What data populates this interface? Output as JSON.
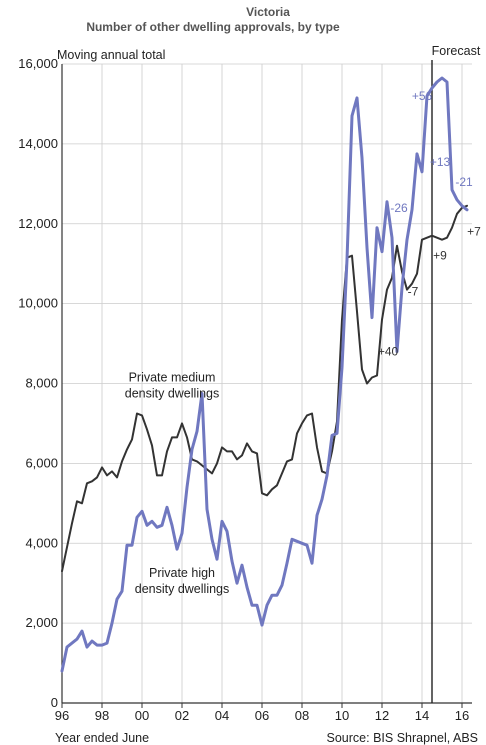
{
  "chart_data": {
    "type": "line",
    "title": "Victoria",
    "subtitle": "Number of other dwelling approvals, by type",
    "ylabel": "Moving annual total",
    "xlabel": "Year ended June",
    "source": "Source: BIS Shrapnel, ABS",
    "forecast_label": "Forecast",
    "forecast_start_year": 2014.5,
    "xlim": [
      1996,
      2016.5
    ],
    "ylim": [
      0,
      16000
    ],
    "x_ticks": [
      1996,
      1998,
      2000,
      2002,
      2004,
      2006,
      2008,
      2010,
      2012,
      2014,
      2016
    ],
    "x_tick_labels": [
      "96",
      "98",
      "00",
      "02",
      "04",
      "06",
      "08",
      "10",
      "12",
      "14",
      "16"
    ],
    "y_ticks": [
      0,
      2000,
      4000,
      6000,
      8000,
      10000,
      12000,
      14000,
      16000
    ],
    "y_tick_labels": [
      "0",
      "2,000",
      "4,000",
      "6,000",
      "8,000",
      "10,000",
      "12,000",
      "14,000",
      "16,000"
    ],
    "colors": {
      "medium": "#333333",
      "high": "#7078c0",
      "grid": "#cccccc",
      "forecast": "#222222"
    },
    "series": [
      {
        "key": "medium",
        "name": "Private medium density dwellings",
        "label_lines": [
          "Private medium",
          "density dwellings"
        ],
        "x": [
          1996.0,
          1996.25,
          1996.5,
          1996.75,
          1997.0,
          1997.25,
          1997.5,
          1997.75,
          1998.0,
          1998.25,
          1998.5,
          1998.75,
          1999.0,
          1999.25,
          1999.5,
          1999.75,
          2000.0,
          2000.25,
          2000.5,
          2000.75,
          2001.0,
          2001.25,
          2001.5,
          2001.75,
          2002.0,
          2002.25,
          2002.5,
          2002.75,
          2003.0,
          2003.25,
          2003.5,
          2003.75,
          2004.0,
          2004.25,
          2004.5,
          2004.75,
          2005.0,
          2005.25,
          2005.5,
          2005.75,
          2006.0,
          2006.25,
          2006.5,
          2006.75,
          2007.0,
          2007.25,
          2007.5,
          2007.75,
          2008.0,
          2008.25,
          2008.5,
          2008.75,
          2009.0,
          2009.25,
          2009.5,
          2009.75,
          2010.0,
          2010.25,
          2010.5,
          2010.75,
          2011.0,
          2011.25,
          2011.5,
          2011.75,
          2012.0,
          2012.25,
          2012.5,
          2012.75,
          2013.0,
          2013.25,
          2013.5,
          2013.75,
          2014.0,
          2014.25,
          2014.5,
          2014.75,
          2015.0,
          2015.25,
          2015.5,
          2015.75,
          2016.0,
          2016.25
        ],
        "values": [
          3300,
          3900,
          4500,
          5050,
          5000,
          5500,
          5550,
          5650,
          5900,
          5700,
          5800,
          5650,
          6050,
          6350,
          6600,
          7250,
          7200,
          6850,
          6450,
          5700,
          5700,
          6300,
          6650,
          6650,
          7000,
          6650,
          6100,
          6050,
          5950,
          5850,
          5750,
          6000,
          6400,
          6300,
          6300,
          6100,
          6200,
          6500,
          6300,
          6250,
          5250,
          5200,
          5350,
          5450,
          5750,
          6050,
          6100,
          6750,
          7000,
          7200,
          7250,
          6400,
          5800,
          5750,
          6300,
          7050,
          9600,
          11150,
          11200,
          9800,
          8350,
          8000,
          8150,
          8200,
          9600,
          10350,
          10650,
          11450,
          10800,
          10350,
          10500,
          10750,
          11600,
          11650,
          11700,
          11650,
          11600,
          11650,
          11900,
          12250,
          12400,
          12450
        ],
        "annotations": [
          {
            "text": "+40",
            "x": 2012.3,
            "y": 8700
          },
          {
            "text": "-7",
            "x": 2013.55,
            "y": 10200
          },
          {
            "text": "+9",
            "x": 2014.9,
            "y": 11100
          },
          {
            "text": "+7",
            "x": 2016.6,
            "y": 11700
          }
        ]
      },
      {
        "key": "high",
        "name": "Private high density dwellings",
        "label_lines": [
          "Private high",
          "density dwellings"
        ],
        "x": [
          1996.0,
          1996.25,
          1996.5,
          1996.75,
          1997.0,
          1997.25,
          1997.5,
          1997.75,
          1998.0,
          1998.25,
          1998.5,
          1998.75,
          1999.0,
          1999.25,
          1999.5,
          1999.75,
          2000.0,
          2000.25,
          2000.5,
          2000.75,
          2001.0,
          2001.25,
          2001.5,
          2001.75,
          2002.0,
          2002.25,
          2002.5,
          2002.75,
          2003.0,
          2003.25,
          2003.5,
          2003.75,
          2004.0,
          2004.25,
          2004.5,
          2004.75,
          2005.0,
          2005.25,
          2005.5,
          2005.75,
          2006.0,
          2006.25,
          2006.5,
          2006.75,
          2007.0,
          2007.25,
          2007.5,
          2007.75,
          2008.0,
          2008.25,
          2008.5,
          2008.75,
          2009.0,
          2009.25,
          2009.5,
          2009.75,
          2010.0,
          2010.25,
          2010.5,
          2010.75,
          2011.0,
          2011.25,
          2011.5,
          2011.75,
          2012.0,
          2012.25,
          2012.5,
          2012.75,
          2013.0,
          2013.25,
          2013.5,
          2013.75,
          2014.0,
          2014.25,
          2014.5,
          2014.75,
          2015.0,
          2015.25,
          2015.5,
          2015.75,
          2016.0,
          2016.25
        ],
        "values": [
          800,
          1400,
          1500,
          1600,
          1800,
          1400,
          1550,
          1450,
          1450,
          1500,
          2000,
          2600,
          2800,
          3950,
          3950,
          4650,
          4800,
          4450,
          4550,
          4400,
          4450,
          4900,
          4450,
          3850,
          4250,
          5400,
          6350,
          6800,
          7750,
          4850,
          4100,
          3600,
          4550,
          4300,
          3550,
          3000,
          3450,
          2900,
          2450,
          2450,
          1950,
          2450,
          2700,
          2700,
          2950,
          3500,
          4100,
          4050,
          4000,
          3950,
          3500,
          4700,
          5100,
          5700,
          6700,
          6750,
          8400,
          11100,
          14700,
          15150,
          13650,
          11400,
          9650,
          11900,
          11300,
          12550,
          11650,
          8800,
          10400,
          11600,
          12350,
          13750,
          13300,
          15200,
          15400,
          15550,
          15650,
          15550,
          12850,
          12600,
          12450,
          12350
        ],
        "annotations": [
          {
            "text": "-26",
            "x": 2012.85,
            "y": 12300
          },
          {
            "text": "+56",
            "x": 2014.0,
            "y": 15100
          },
          {
            "text": "+13",
            "x": 2014.9,
            "y": 13450
          },
          {
            "text": "-21",
            "x": 2016.1,
            "y": 12950
          }
        ]
      }
    ]
  }
}
